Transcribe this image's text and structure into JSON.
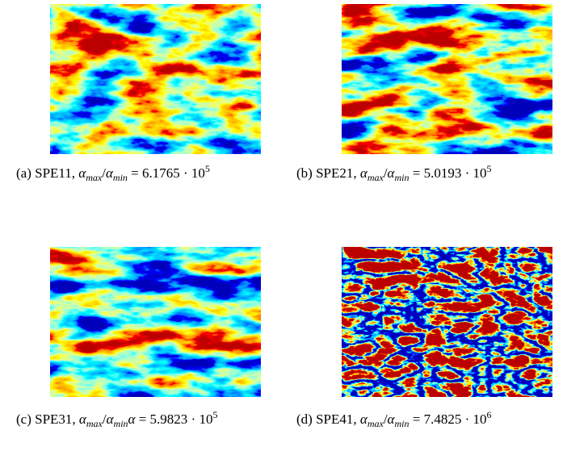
{
  "subfigures": [
    {
      "label": "(a)",
      "name": "SPE11,",
      "numerator": "α",
      "numerator_sub": "max",
      "slash": "/",
      "denominator": "α",
      "denominator_sub": "min",
      "equals": "= 6.1765 ·",
      "base": "10",
      "exponent": "5"
    },
    {
      "label": "(b)",
      "name": "SPE21,",
      "numerator": "α",
      "numerator_sub": "max",
      "slash": "/",
      "denominator": "α",
      "denominator_sub": "min",
      "equals": "= 5.0193 ·",
      "base": "10",
      "exponent": "5"
    },
    {
      "label": "(c)",
      "name": "SPE31,",
      "numerator": "α",
      "numerator_sub": "max",
      "slash": "/",
      "denominator": "α",
      "denominator_sub": "min",
      "extra": "α",
      "equals": "= 5.9823 ·",
      "base": "10",
      "exponent": "5"
    },
    {
      "label": "(d)",
      "name": "SPE41,",
      "numerator": "α",
      "numerator_sub": "max",
      "slash": "/",
      "denominator": "α",
      "denominator_sub": "min",
      "equals": "= 7.4825 ·",
      "base": "10",
      "exponent": "6"
    }
  ]
}
